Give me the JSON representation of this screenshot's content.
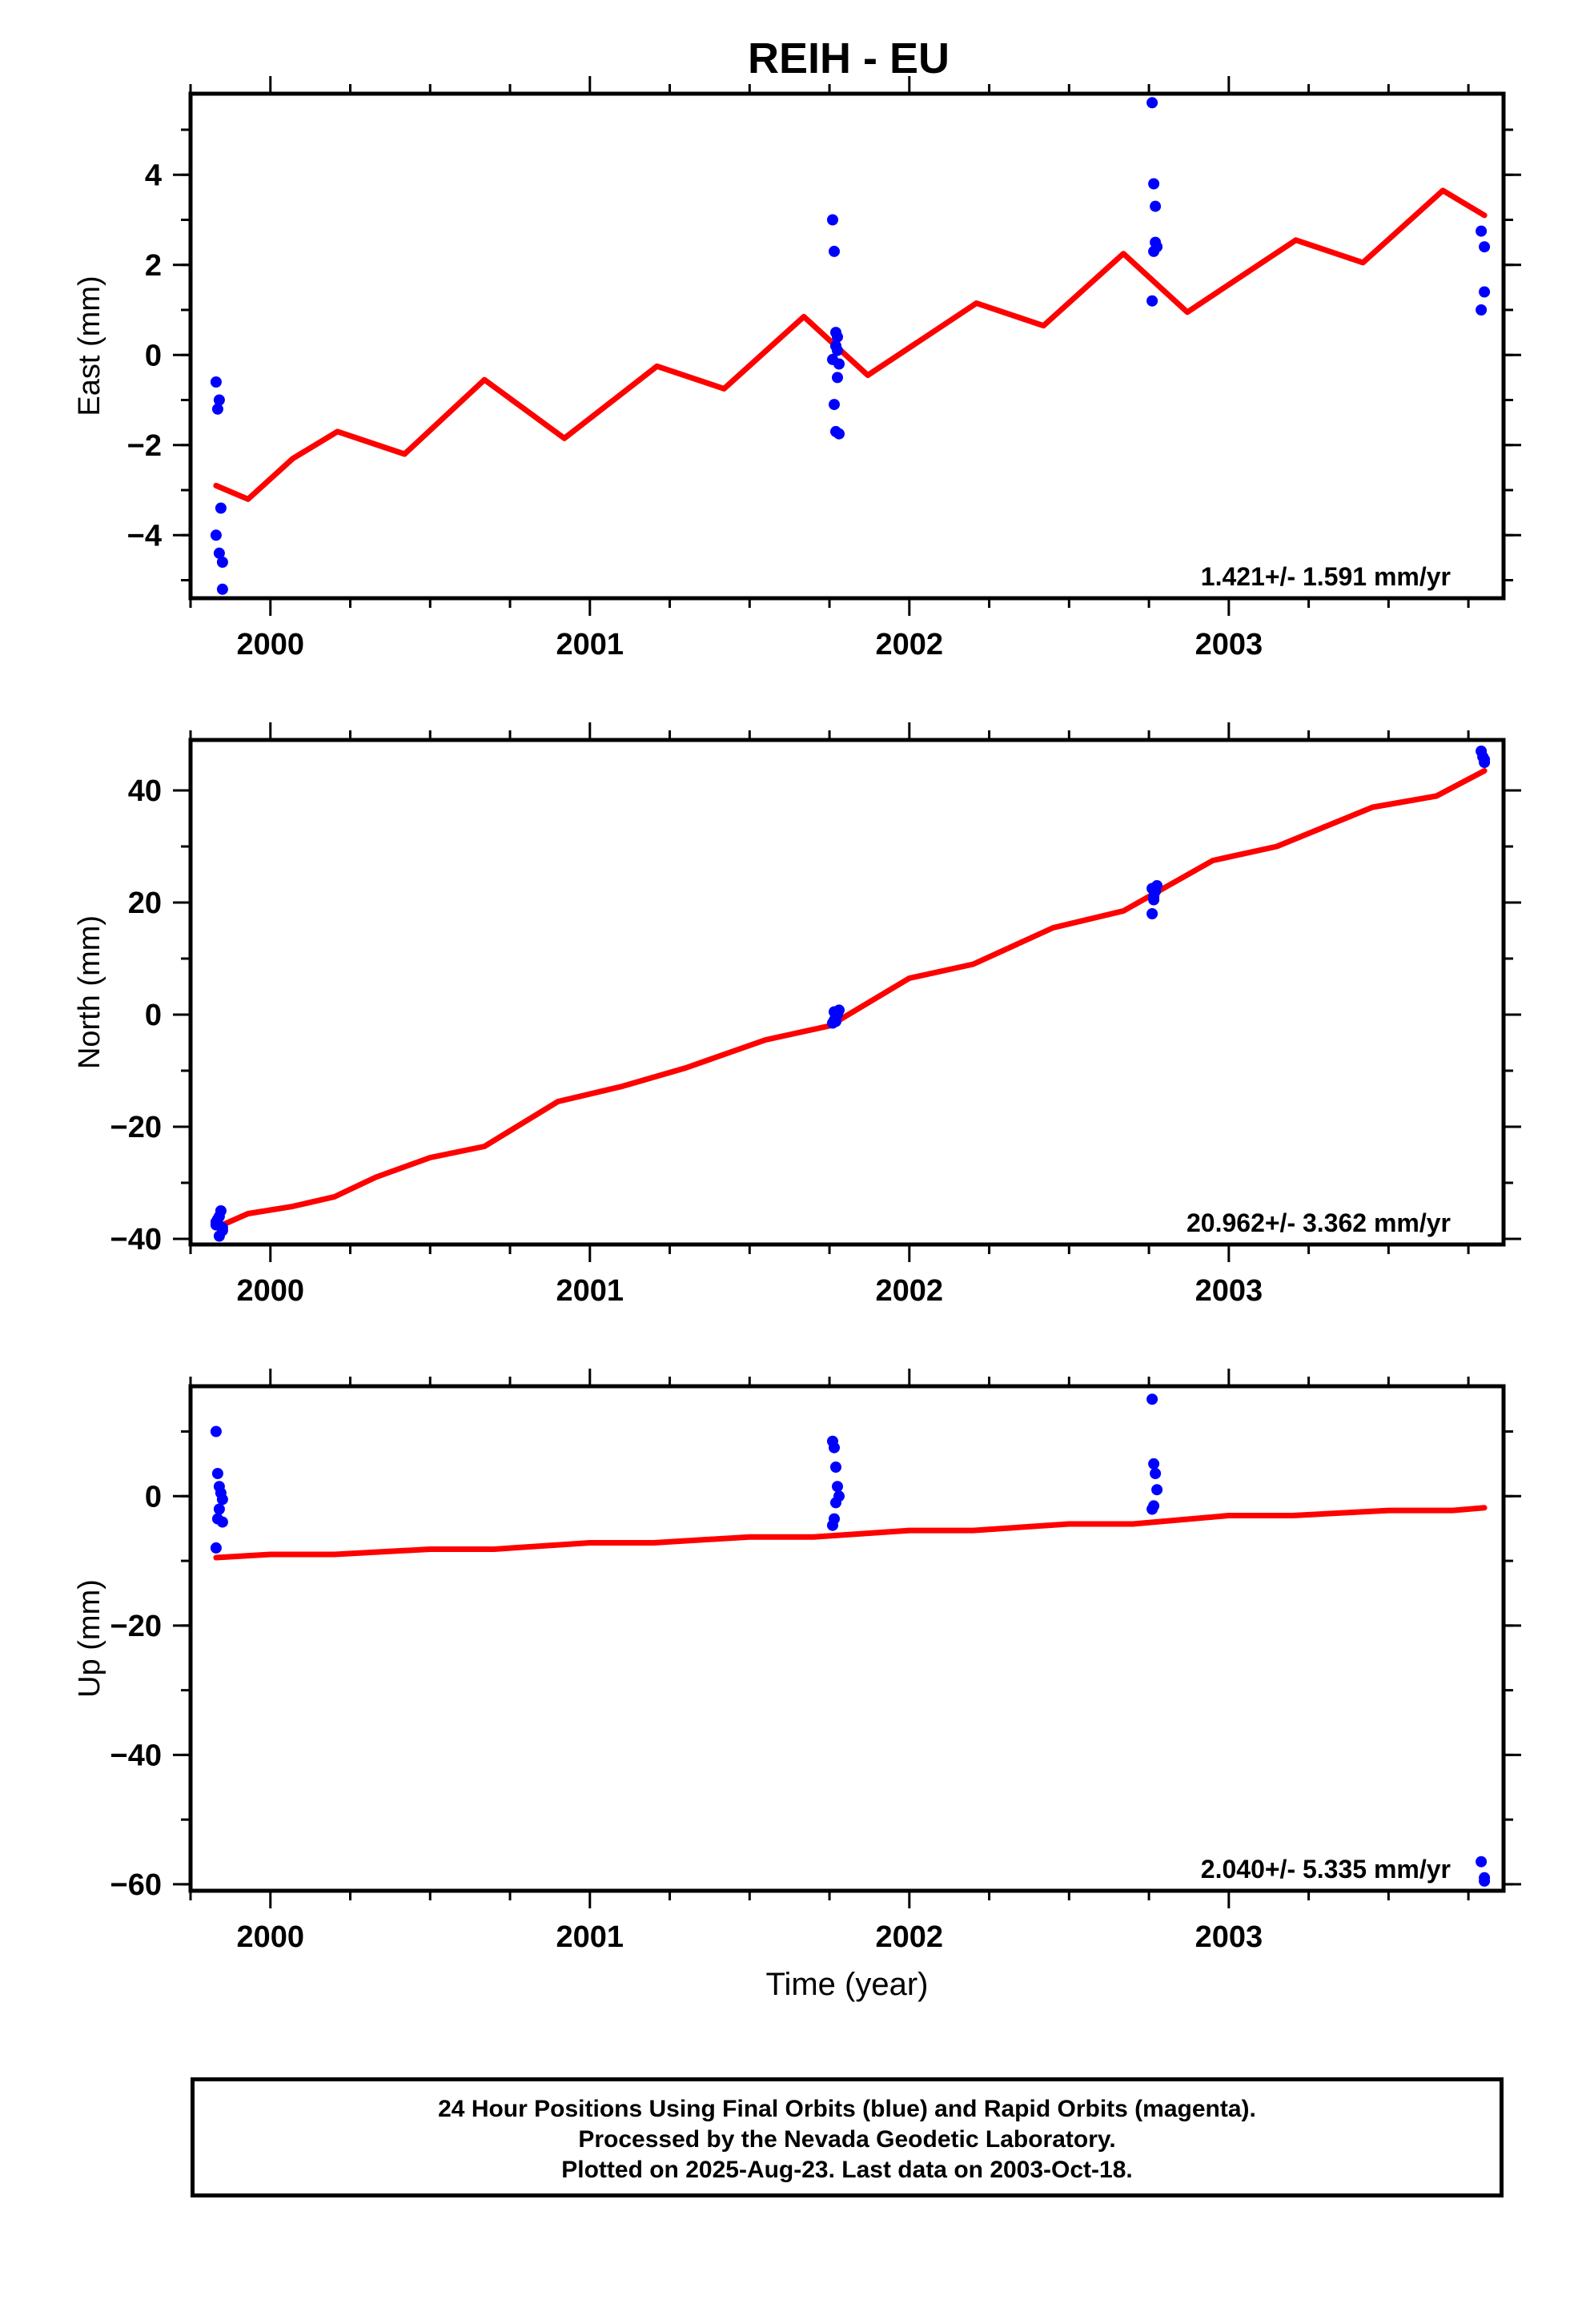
{
  "title": "REIH - EU",
  "xlabel": "Time (year)",
  "footer": [
    "24 Hour Positions Using Final Orbits (blue) and Rapid Orbits (magenta).",
    "Processed by the Nevada Geodetic Laboratory.",
    "Plotted on 2025-Aug-23. Last data on 2003-Oct-18."
  ],
  "colors": {
    "data_points": "#0000ff",
    "fit_line": "#ff0000",
    "frame": "#000000"
  },
  "chart_data": [
    {
      "type": "scatter",
      "ylabel": "East (mm)",
      "annotation": "1.421+/- 1.591 mm/yr",
      "xlim": [
        1999.75,
        2003.86
      ],
      "ylim": [
        -5.4,
        5.8
      ],
      "xticks": [
        2000,
        2001,
        2002,
        2003
      ],
      "yticks": [
        -4,
        -2,
        0,
        2,
        4
      ],
      "series": [
        {
          "role": "points",
          "x": [
            1999.83,
            1999.84,
            1999.835,
            1999.845,
            1999.83,
            1999.84,
            1999.85,
            1999.85,
            2001.76,
            2001.765,
            2001.77,
            2001.77,
            2001.775,
            2001.76,
            2001.78,
            2001.775,
            2001.765,
            2001.77,
            2001.78,
            2001.775,
            2002.76,
            2002.765,
            2002.77,
            2002.77,
            2002.775,
            2002.765,
            2002.76,
            2003.79,
            2003.8,
            2003.8,
            2003.79
          ],
          "y": [
            -0.6,
            -1.0,
            -1.2,
            -3.4,
            -4.0,
            -4.4,
            -4.6,
            -5.2,
            3.0,
            2.3,
            0.5,
            0.2,
            0.1,
            -0.1,
            -0.2,
            -0.5,
            -1.1,
            -1.7,
            -1.75,
            0.4,
            5.6,
            3.8,
            3.3,
            2.5,
            2.4,
            2.3,
            1.2,
            2.75,
            2.4,
            1.4,
            1.0
          ]
        },
        {
          "role": "fit",
          "x": [
            1999.83,
            1999.93,
            2000.07,
            2000.21,
            2000.42,
            2000.67,
            2000.92,
            2001.21,
            2001.42,
            2001.67,
            2001.87,
            2002.21,
            2002.42,
            2002.67,
            2002.87,
            2003.21,
            2003.42,
            2003.67,
            2003.8
          ],
          "y": [
            -2.9,
            -3.2,
            -2.3,
            -1.7,
            -2.2,
            -0.55,
            -1.85,
            -0.25,
            -0.75,
            0.85,
            -0.45,
            1.15,
            0.65,
            2.25,
            0.95,
            2.55,
            2.05,
            3.65,
            3.1
          ]
        }
      ]
    },
    {
      "type": "scatter",
      "ylabel": "North (mm)",
      "annotation": "20.962+/- 3.362 mm/yr",
      "xlim": [
        1999.75,
        2003.86
      ],
      "ylim": [
        -41,
        49
      ],
      "xticks": [
        2000,
        2001,
        2002,
        2003
      ],
      "yticks": [
        -40,
        -20,
        0,
        20,
        40
      ],
      "series": [
        {
          "role": "points",
          "x": [
            1999.83,
            1999.835,
            1999.84,
            1999.845,
            1999.85,
            1999.84,
            1999.83,
            1999.85,
            2001.76,
            2001.765,
            2001.77,
            2001.775,
            2001.78,
            2001.77,
            2001.765,
            2002.76,
            2002.765,
            2002.77,
            2002.775,
            2002.765,
            2002.76,
            2003.79,
            2003.795,
            2003.8,
            2003.8
          ],
          "y": [
            -37.0,
            -36.5,
            -36.0,
            -35.0,
            -38.5,
            -39.5,
            -37.5,
            -38.0,
            -1.5,
            -1.0,
            -0.5,
            0.0,
            0.8,
            -1.2,
            0.5,
            18.0,
            21.0,
            22.0,
            23.0,
            20.5,
            22.5,
            47.0,
            46.0,
            45.0,
            45.5
          ]
        },
        {
          "role": "fit",
          "x": [
            1999.83,
            1999.93,
            2000.07,
            2000.2,
            2000.33,
            2000.5,
            2000.67,
            2000.9,
            2001.1,
            2001.3,
            2001.55,
            2001.75,
            2002.0,
            2002.2,
            2002.45,
            2002.67,
            2002.95,
            2003.15,
            2003.45,
            2003.65,
            2003.8
          ],
          "y": [
            -38.0,
            -35.5,
            -34.2,
            -32.5,
            -29.0,
            -25.5,
            -23.5,
            -15.5,
            -12.8,
            -9.5,
            -4.5,
            -2.0,
            6.5,
            9.0,
            15.5,
            18.5,
            27.5,
            30.0,
            37.0,
            39.0,
            43.5
          ]
        }
      ]
    },
    {
      "type": "scatter",
      "ylabel": "Up (mm)",
      "annotation": "2.040+/- 5.335 mm/yr",
      "xlim": [
        1999.75,
        2003.86
      ],
      "ylim": [
        -61,
        17
      ],
      "xticks": [
        2000,
        2001,
        2002,
        2003
      ],
      "yticks": [
        -60,
        -40,
        -20,
        0
      ],
      "series": [
        {
          "role": "points",
          "x": [
            1999.83,
            1999.835,
            1999.84,
            1999.845,
            1999.85,
            1999.84,
            1999.835,
            1999.85,
            1999.83,
            2001.76,
            2001.765,
            2001.77,
            2001.775,
            2001.78,
            2001.77,
            2001.765,
            2001.76,
            2002.76,
            2002.765,
            2002.77,
            2002.775,
            2002.765,
            2002.76,
            2003.79,
            2003.8,
            2003.8
          ],
          "y": [
            10.0,
            3.5,
            1.5,
            0.5,
            -0.5,
            -2.0,
            -3.5,
            -4.0,
            -8.0,
            8.5,
            7.5,
            4.5,
            1.5,
            0.0,
            -1.0,
            -3.5,
            -4.5,
            15.0,
            5.0,
            3.5,
            1.0,
            -1.5,
            -2.0,
            -56.5,
            -59.0,
            -59.5
          ]
        },
        {
          "role": "fit",
          "x": [
            1999.83,
            2000.0,
            2000.2,
            2000.5,
            2000.7,
            2001.0,
            2001.2,
            2001.5,
            2001.7,
            2002.0,
            2002.2,
            2002.5,
            2002.7,
            2003.0,
            2003.2,
            2003.5,
            2003.7,
            2003.8
          ],
          "y": [
            -9.5,
            -9.0,
            -9.0,
            -8.2,
            -8.2,
            -7.2,
            -7.2,
            -6.3,
            -6.3,
            -5.3,
            -5.3,
            -4.3,
            -4.3,
            -3.0,
            -3.0,
            -2.2,
            -2.2,
            -1.8
          ]
        }
      ]
    }
  ]
}
